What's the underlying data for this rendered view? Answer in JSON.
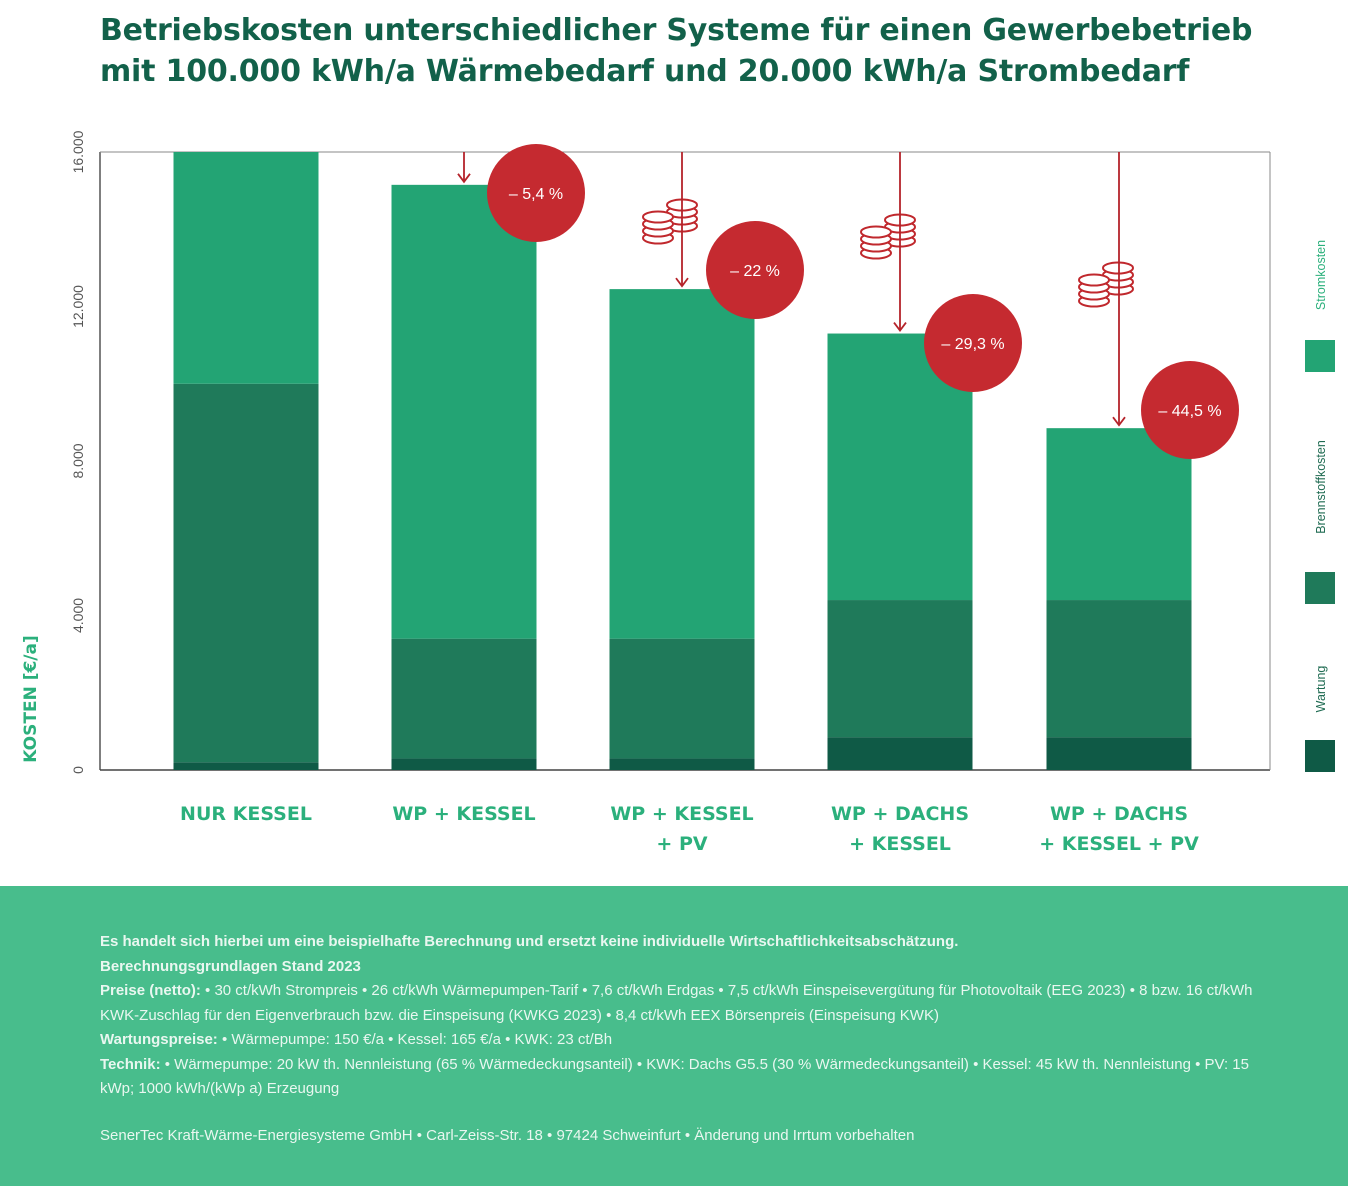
{
  "title": {
    "line1": "Betriebskosten unterschiedlicher Systeme für einen Gewerbebetrieb",
    "line2": "mit 100.000 kWh/a Wärmebedarf und 20.000 kWh/a Strombedarf"
  },
  "chart_data": {
    "type": "bar",
    "stacked": true,
    "ylabel": "KOSTEN [€/a]",
    "ylim": [
      0,
      16000
    ],
    "yticks": [
      0,
      4000,
      8000,
      12000,
      16000
    ],
    "ytick_labels": [
      "0",
      "4.000",
      "8.000",
      "12.000",
      "16.000"
    ],
    "categories": [
      [
        "NUR KESSEL"
      ],
      [
        "WP + KESSEL"
      ],
      [
        "WP + KESSEL",
        "+ PV"
      ],
      [
        "WP + DACHS",
        "+ KESSEL"
      ],
      [
        "WP + DACHS",
        "+ KESSEL + PV"
      ]
    ],
    "series": [
      {
        "name": "Wartung",
        "color": "#0f5a46",
        "values": [
          200,
          300,
          300,
          850,
          850
        ]
      },
      {
        "name": "Brennstoffkosten",
        "color": "#1f7a5a",
        "values": [
          9800,
          3100,
          3100,
          3550,
          3550
        ]
      },
      {
        "name": "Stromkosten",
        "color": "#23a474",
        "values": [
          6000,
          11750,
          9050,
          6900,
          4450
        ]
      }
    ],
    "savings": [
      "– 5,4 %",
      "– 22 %",
      "– 29,3 %",
      "– 44,5 %"
    ],
    "grid": false,
    "legend_position": "right"
  },
  "footer": {
    "line1": "Es handelt sich hierbei um eine beispielhafte Berechnung und ersetzt keine individuelle Wirtschaftlichkeitsabschätzung.",
    "line2": "Berechnungsgrundlagen Stand 2023",
    "prices_label": "Preise (netto):",
    "prices_text": " • 30 ct/kWh Strompreis • 26 ct/kWh Wärmepumpen-Tarif • 7,6 ct/kWh Erdgas • 7,5 ct/kWh Einspeisevergütung für Photovoltaik (EEG 2023) • 8 bzw. 16 ct/kWh KWK-Zuschlag für den Eigenverbrauch bzw. die Einspeisung (KWKG 2023) • 8,4 ct/kWh EEX Börsenpreis (Einspeisung KWK)",
    "maint_label": "Wartungspreise:",
    "maint_text": " • Wärmepumpe: 150 €/a • Kessel: 165 €/a • KWK: 23 ct/Bh",
    "tech_label": "Technik:",
    "tech_text": " • Wärmepumpe: 20 kW th. Nennleistung (65 % Wärmedeckungsanteil) • KWK: Dachs G5.5 (30 % Wärmedeckungsanteil) • Kessel: 45 kW th. Nennleistung • PV: 15 kWp; 1000 kWh/(kWp a) Erzeugung",
    "address": "SenerTec Kraft-Wärme-Energiesysteme GmbH • Carl-Zeiss-Str. 18 • 97424 Schweinfurt • Änderung und Irrtum vorbehalten"
  }
}
